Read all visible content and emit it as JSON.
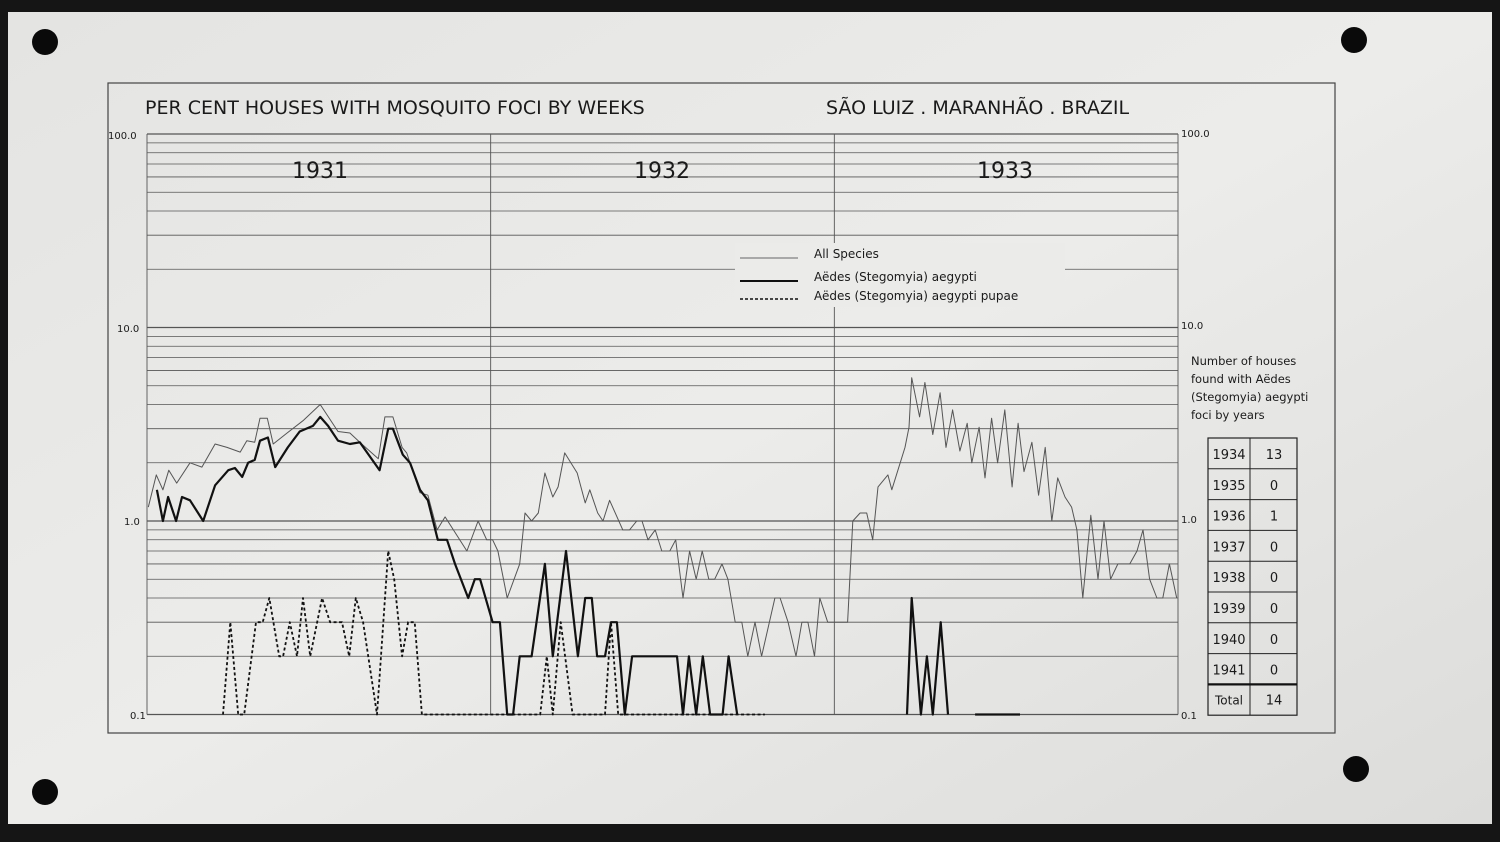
{
  "chart_data": {
    "type": "line",
    "title": "PER CENT HOUSES WITH MOSQUITO FOCI BY WEEKS",
    "subtitle": "SÃO LUIZ . MARANHÃO . BRAZIL",
    "y_scale": "log",
    "ylim": [
      0.1,
      100.0
    ],
    "y_ticks_left": [
      "100.0",
      "10.0",
      "1.0",
      "0.1"
    ],
    "y_ticks_right": [
      "100.0",
      "10.0",
      "1.0",
      "0.1"
    ],
    "x_unit": "week",
    "xlim": [
      0,
      156
    ],
    "year_labels": [
      "1931",
      "1932",
      "1933"
    ],
    "grid": true,
    "legend_position": "top-center",
    "series": [
      {
        "name": "All Species",
        "style": "thin",
        "color": "#555555",
        "points": [
          [
            0.2,
            1.18
          ],
          [
            1.4,
            1.73
          ],
          [
            2.4,
            1.45
          ],
          [
            3.3,
            1.83
          ],
          [
            4.5,
            1.57
          ],
          [
            6.5,
            2.0
          ],
          [
            8.3,
            1.9
          ],
          [
            10.3,
            2.5
          ],
          [
            12.1,
            2.4
          ],
          [
            14.1,
            2.27
          ],
          [
            15.1,
            2.6
          ],
          [
            16.3,
            2.55
          ],
          [
            17.1,
            3.4
          ],
          [
            18.2,
            3.4
          ],
          [
            19.1,
            2.5
          ],
          [
            21.2,
            2.85
          ],
          [
            23.6,
            3.3
          ],
          [
            26.2,
            4.0
          ],
          [
            28.9,
            2.9
          ],
          [
            30.7,
            2.85
          ],
          [
            32.2,
            2.55
          ],
          [
            35.0,
            2.1
          ],
          [
            36.0,
            3.45
          ],
          [
            37.2,
            3.45
          ],
          [
            38.6,
            2.4
          ],
          [
            39.3,
            2.25
          ],
          [
            41.3,
            1.4
          ],
          [
            42.5,
            1.36
          ],
          [
            43.9,
            0.9
          ],
          [
            45.1,
            1.05
          ],
          [
            48.4,
            0.7
          ],
          [
            50.1,
            1.0
          ],
          [
            51.4,
            0.8
          ],
          [
            52.3,
            0.8
          ],
          [
            53.1,
            0.7
          ],
          [
            54.5,
            0.4
          ],
          [
            56.4,
            0.6
          ],
          [
            57.2,
            1.1
          ],
          [
            58.2,
            1.0
          ],
          [
            59.2,
            1.1
          ],
          [
            60.2,
            1.77
          ],
          [
            61.4,
            1.33
          ],
          [
            62.2,
            1.5
          ],
          [
            63.2,
            2.25
          ],
          [
            65.1,
            1.77
          ],
          [
            66.3,
            1.24
          ],
          [
            67.0,
            1.45
          ],
          [
            68.2,
            1.1
          ],
          [
            69.0,
            1.0
          ],
          [
            70.0,
            1.28
          ],
          [
            72.0,
            0.9
          ],
          [
            73.0,
            0.9
          ],
          [
            74.1,
            1.0
          ],
          [
            74.9,
            1.0
          ],
          [
            75.8,
            0.8
          ],
          [
            76.9,
            0.9
          ],
          [
            77.9,
            0.7
          ],
          [
            79.1,
            0.7
          ],
          [
            80.0,
            0.8
          ],
          [
            81.1,
            0.4
          ],
          [
            82.1,
            0.7
          ],
          [
            83.1,
            0.5
          ],
          [
            84.0,
            0.7
          ],
          [
            85.0,
            0.5
          ],
          [
            85.9,
            0.5
          ],
          [
            87.0,
            0.6
          ],
          [
            87.9,
            0.5
          ],
          [
            89.0,
            0.3
          ],
          [
            90.0,
            0.3
          ],
          [
            90.9,
            0.2
          ],
          [
            92.0,
            0.3
          ],
          [
            93.0,
            0.2
          ],
          [
            95.0,
            0.4
          ],
          [
            95.8,
            0.4
          ],
          [
            97.0,
            0.3
          ],
          [
            98.2,
            0.2
          ],
          [
            99.1,
            0.3
          ],
          [
            100.0,
            0.3
          ],
          [
            101.0,
            0.2
          ],
          [
            101.8,
            0.4
          ],
          [
            103.0,
            0.3
          ],
          [
            106.0,
            0.3
          ],
          [
            106.8,
            1.0
          ],
          [
            107.9,
            1.1
          ],
          [
            108.9,
            1.1
          ],
          [
            109.8,
            0.8
          ],
          [
            110.6,
            1.5
          ],
          [
            112.1,
            1.73
          ],
          [
            112.7,
            1.45
          ],
          [
            114.7,
            2.4
          ],
          [
            115.3,
            3.05
          ],
          [
            115.7,
            5.5
          ],
          [
            116.9,
            3.45
          ],
          [
            117.7,
            5.2
          ],
          [
            118.9,
            2.8
          ],
          [
            120.0,
            4.6
          ],
          [
            120.9,
            2.4
          ],
          [
            121.9,
            3.75
          ],
          [
            123.0,
            2.3
          ],
          [
            124.1,
            3.2
          ],
          [
            124.8,
            2.0
          ],
          [
            125.9,
            3.05
          ],
          [
            126.8,
            1.67
          ],
          [
            127.8,
            3.4
          ],
          [
            128.7,
            2.0
          ],
          [
            129.8,
            3.75
          ],
          [
            130.9,
            1.5
          ],
          [
            131.8,
            3.2
          ],
          [
            132.7,
            1.8
          ],
          [
            133.9,
            2.55
          ],
          [
            134.9,
            1.36
          ],
          [
            135.9,
            2.4
          ],
          [
            136.9,
            1.0
          ],
          [
            137.8,
            1.67
          ],
          [
            138.9,
            1.33
          ],
          [
            139.9,
            1.18
          ],
          [
            140.7,
            0.9
          ],
          [
            141.6,
            0.4
          ],
          [
            142.8,
            1.07
          ],
          [
            143.9,
            0.5
          ],
          [
            144.8,
            1.0
          ],
          [
            145.8,
            0.5
          ],
          [
            146.9,
            0.6
          ],
          [
            148.7,
            0.6
          ],
          [
            149.8,
            0.7
          ],
          [
            150.7,
            0.9
          ],
          [
            151.7,
            0.5
          ],
          [
            152.8,
            0.4
          ],
          [
            153.7,
            0.4
          ],
          [
            154.7,
            0.6
          ],
          [
            155.8,
            0.4
          ]
        ]
      },
      {
        "name": "Aëdes (Stegomyia) aegypti",
        "style": "thick",
        "color": "#111111",
        "points": [
          [
            1.5,
            1.45
          ],
          [
            2.4,
            1.0
          ],
          [
            3.2,
            1.33
          ],
          [
            4.4,
            1.0
          ],
          [
            5.3,
            1.33
          ],
          [
            6.5,
            1.28
          ],
          [
            8.5,
            1.0
          ],
          [
            10.3,
            1.53
          ],
          [
            12.3,
            1.83
          ],
          [
            13.3,
            1.88
          ],
          [
            14.4,
            1.69
          ],
          [
            15.3,
            2.0
          ],
          [
            16.3,
            2.07
          ],
          [
            17.1,
            2.6
          ],
          [
            18.3,
            2.7
          ],
          [
            19.4,
            1.9
          ],
          [
            21.3,
            2.4
          ],
          [
            23.1,
            2.9
          ],
          [
            25.1,
            3.1
          ],
          [
            26.2,
            3.45
          ],
          [
            27.4,
            3.1
          ],
          [
            28.9,
            2.6
          ],
          [
            30.7,
            2.5
          ],
          [
            32.2,
            2.55
          ],
          [
            35.2,
            1.83
          ],
          [
            36.5,
            3.0
          ],
          [
            37.2,
            3.0
          ],
          [
            38.7,
            2.2
          ],
          [
            39.8,
            2.0
          ],
          [
            41.3,
            1.45
          ],
          [
            42.5,
            1.28
          ],
          [
            44.0,
            0.8
          ],
          [
            45.4,
            0.8
          ],
          [
            46.6,
            0.6
          ],
          [
            48.6,
            0.4
          ],
          [
            49.6,
            0.5
          ],
          [
            50.4,
            0.5
          ],
          [
            52.3,
            0.3
          ],
          [
            53.4,
            0.3
          ],
          [
            54.5,
            0.1
          ],
          [
            55.4,
            0.1
          ],
          [
            56.4,
            0.2
          ],
          [
            58.2,
            0.2
          ],
          [
            60.2,
            0.6
          ],
          [
            61.4,
            0.2
          ],
          [
            63.4,
            0.7
          ],
          [
            65.2,
            0.2
          ],
          [
            66.3,
            0.4
          ],
          [
            67.3,
            0.4
          ],
          [
            68.1,
            0.2
          ],
          [
            69.3,
            0.2
          ],
          [
            70.2,
            0.3
          ],
          [
            71.1,
            0.3
          ],
          [
            72.3,
            0.1
          ],
          [
            73.4,
            0.2
          ],
          [
            80.2,
            0.2
          ],
          [
            81.1,
            0.1
          ],
          [
            82.0,
            0.2
          ],
          [
            83.1,
            0.1
          ],
          [
            84.1,
            0.2
          ],
          [
            85.2,
            0.1
          ],
          [
            87.1,
            0.1
          ],
          [
            88.0,
            0.2
          ],
          [
            89.3,
            0.1
          ],
          null,
          [
            115.0,
            0.1
          ],
          [
            115.7,
            0.4
          ],
          [
            117.1,
            0.1
          ],
          [
            118.0,
            0.2
          ],
          [
            118.9,
            0.1
          ],
          [
            120.1,
            0.3
          ],
          [
            121.2,
            0.1
          ],
          null,
          [
            125.3,
            0.1
          ],
          [
            132.1,
            0.1
          ]
        ]
      },
      {
        "name": "Aëdes (Stegomyia) aegypti pupae",
        "style": "dashed",
        "color": "#111111",
        "points": [
          [
            11.5,
            0.1
          ],
          [
            12.6,
            0.3
          ],
          [
            13.8,
            0.1
          ],
          [
            14.7,
            0.1
          ],
          [
            16.5,
            0.3
          ],
          [
            17.5,
            0.3
          ],
          [
            18.5,
            0.4
          ],
          [
            20.0,
            0.2
          ],
          [
            20.6,
            0.2
          ],
          [
            21.6,
            0.3
          ],
          [
            22.7,
            0.2
          ],
          [
            23.6,
            0.4
          ],
          [
            24.7,
            0.2
          ],
          [
            26.5,
            0.4
          ],
          [
            27.7,
            0.3
          ],
          [
            29.5,
            0.3
          ],
          [
            30.6,
            0.2
          ],
          [
            31.6,
            0.4
          ],
          [
            32.7,
            0.3
          ],
          [
            34.8,
            0.1
          ],
          [
            36.5,
            0.7
          ],
          [
            37.4,
            0.5
          ],
          [
            38.6,
            0.2
          ],
          [
            39.5,
            0.3
          ],
          [
            40.5,
            0.3
          ],
          [
            41.6,
            0.1
          ],
          [
            59.5,
            0.1
          ],
          [
            60.5,
            0.2
          ],
          [
            61.4,
            0.1
          ],
          [
            62.6,
            0.3
          ],
          [
            64.4,
            0.1
          ],
          [
            69.3,
            0.1
          ],
          [
            70.2,
            0.3
          ],
          [
            71.3,
            0.1
          ],
          [
            93.5,
            0.1
          ]
        ]
      }
    ]
  },
  "table": {
    "caption": [
      "Number of houses",
      "found with Aëdes",
      "(Stegomyia) aegypti",
      "foci by years"
    ],
    "rows": [
      {
        "year": "1934",
        "count": "13"
      },
      {
        "year": "1935",
        "count": "0"
      },
      {
        "year": "1936",
        "count": "1"
      },
      {
        "year": "1937",
        "count": "0"
      },
      {
        "year": "1938",
        "count": "0"
      },
      {
        "year": "1939",
        "count": "0"
      },
      {
        "year": "1940",
        "count": "0"
      },
      {
        "year": "1941",
        "count": "0"
      }
    ],
    "total_label": "Total",
    "total_value": "14"
  }
}
